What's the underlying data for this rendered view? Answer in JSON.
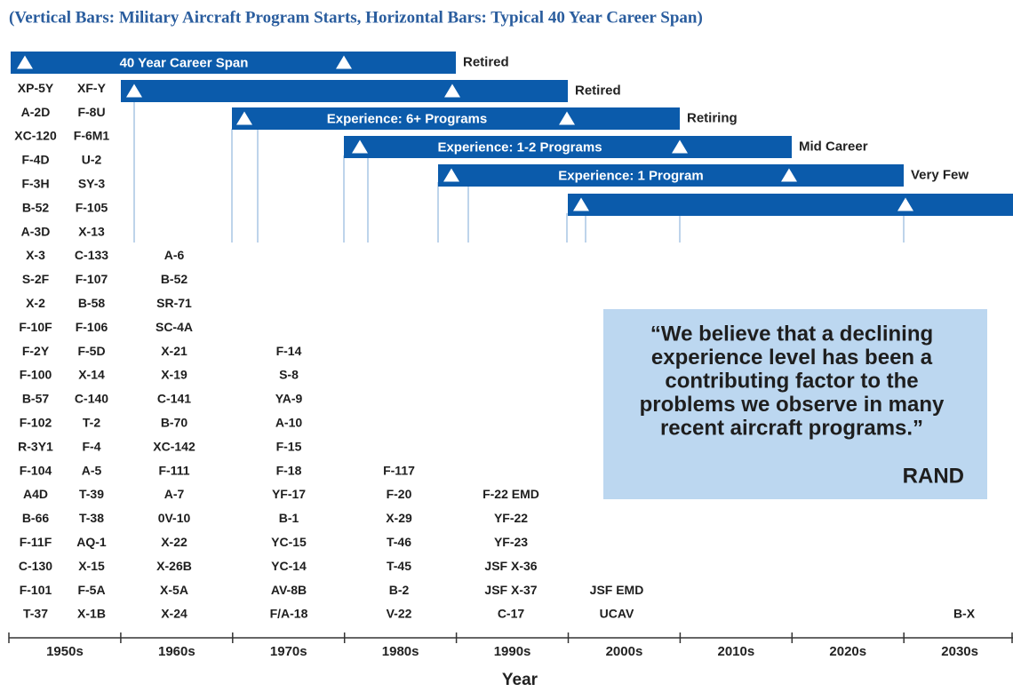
{
  "title": "(Vertical Bars: Military Aircraft Program Starts, Horizontal Bars: Typical 40 Year Career Span)",
  "bars": [
    {
      "label": "40 Year Career Span",
      "status": "Retired"
    },
    {
      "status": "Retired"
    },
    {
      "label": "Experience: 6+ Programs",
      "status": "Retiring"
    },
    {
      "label": "Experience: 1-2 Programs",
      "status": "Mid Career"
    },
    {
      "label": "Experience: 1 Program",
      "status": "Very Few"
    },
    {}
  ],
  "columns": [
    [
      "XP-5Y",
      "A-2D",
      "XC-120",
      "F-4D",
      "F-3H",
      "B-52",
      "A-3D",
      "X-3",
      "S-2F",
      "X-2",
      "F-10F",
      "F-2Y",
      "F-100",
      "B-57",
      "F-102",
      "R-3Y1",
      "F-104",
      "A4D",
      "B-66",
      "F-11F",
      "C-130",
      "F-101",
      "T-37"
    ],
    [
      "XF-Y",
      "F-8U",
      "F-6M1",
      "U-2",
      "SY-3",
      "F-105",
      "X-13",
      "C-133",
      "F-107",
      "B-58",
      "F-106",
      "F-5D",
      "X-14",
      "C-140",
      "T-2",
      "F-4",
      "A-5",
      "T-39",
      "T-38",
      "AQ-1",
      "X-15",
      "F-5A",
      "X-1B"
    ],
    [
      "A-6",
      "B-52",
      "SR-71",
      "SC-4A",
      "X-21",
      "X-19",
      "C-141",
      "B-70",
      "XC-142",
      "F-111",
      "A-7",
      "0V-10",
      "X-22",
      "X-26B",
      "X-5A",
      "X-24"
    ],
    [
      "F-14",
      "S-8",
      "YA-9",
      "A-10",
      "F-15",
      "F-18",
      "YF-17",
      "B-1",
      "YC-15",
      "YC-14",
      "AV-8B",
      "F/A-18"
    ],
    [
      "F-117",
      "F-20",
      "X-29",
      "T-46",
      "T-45",
      "B-2",
      "V-22"
    ],
    [
      "F-22 EMD",
      "YF-22",
      "YF-23",
      "JSF X-36",
      "JSF X-37",
      "C-17"
    ],
    [
      "JSF EMD",
      "UCAV"
    ],
    [
      "B-X"
    ]
  ],
  "quote": {
    "lines": [
      "“We believe that a declining",
      "experience level has been a",
      "contributing factor to the",
      "problems we observe in many",
      "recent aircraft programs.”"
    ],
    "source": "RAND"
  },
  "decades": [
    "1950s",
    "1960s",
    "1970s",
    "1980s",
    "1990s",
    "2000s",
    "2010s",
    "2020s",
    "2030s"
  ],
  "x_axis_label": "Year"
}
